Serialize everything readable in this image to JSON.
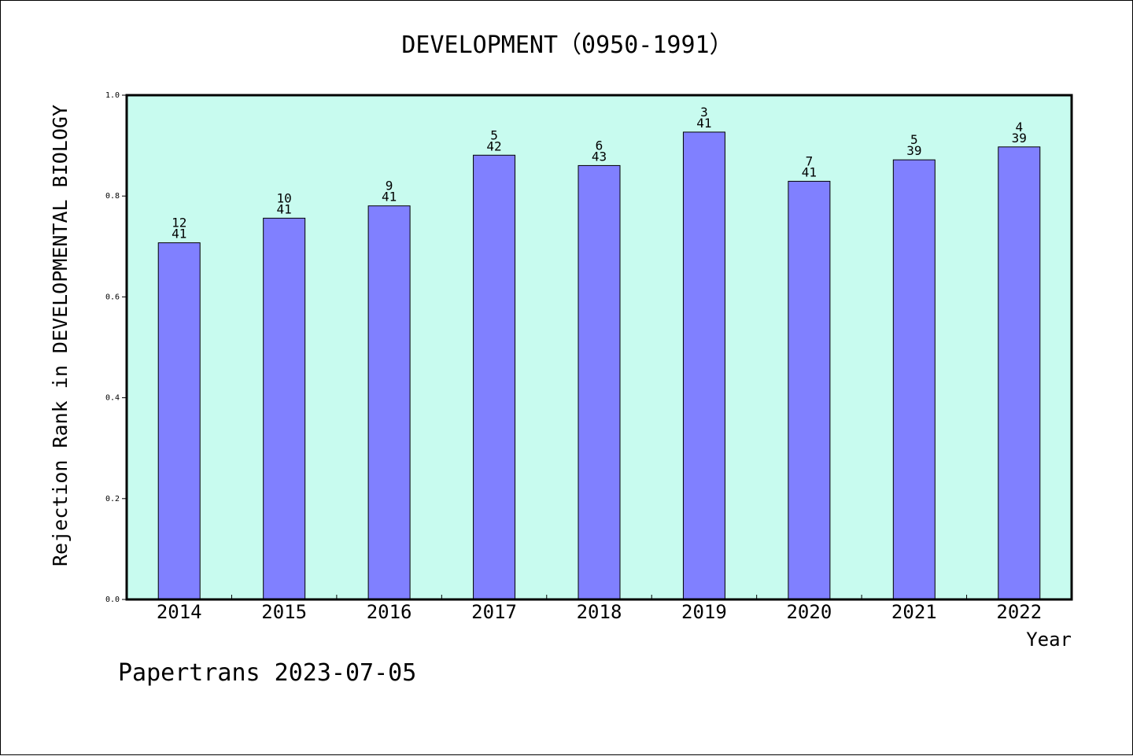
{
  "chart_data": {
    "type": "bar",
    "title": "DEVELOPMENT（0950-1991）",
    "xlabel": "Year",
    "ylabel": "Rejection Rank in DEVELOPMENTAL BIOLOGY",
    "categories": [
      "2014",
      "2015",
      "2016",
      "2017",
      "2018",
      "2019",
      "2020",
      "2021",
      "2022"
    ],
    "values": [
      0.7073,
      0.7561,
      0.7805,
      0.881,
      0.8605,
      0.9268,
      0.8293,
      0.8718,
      0.8974
    ],
    "bar_labels": [
      {
        "top": "12",
        "bottom": "41"
      },
      {
        "top": "10",
        "bottom": "41"
      },
      {
        "top": "9",
        "bottom": "41"
      },
      {
        "top": "5",
        "bottom": "42"
      },
      {
        "top": "6",
        "bottom": "43"
      },
      {
        "top": "3",
        "bottom": "41"
      },
      {
        "top": "7",
        "bottom": "41"
      },
      {
        "top": "5",
        "bottom": "39"
      },
      {
        "top": "4",
        "bottom": "39"
      }
    ],
    "yticks": [
      "0.0",
      "0.2",
      "0.4",
      "0.6",
      "0.8",
      "1.0"
    ],
    "ylim": [
      0,
      1.0
    ],
    "grid": false,
    "colors": {
      "plot_background": "#c8fbef",
      "bar_fill": "#8080ff",
      "bar_edge": "#000000"
    }
  },
  "footer": {
    "text": "Papertrans 2023-07-05"
  }
}
